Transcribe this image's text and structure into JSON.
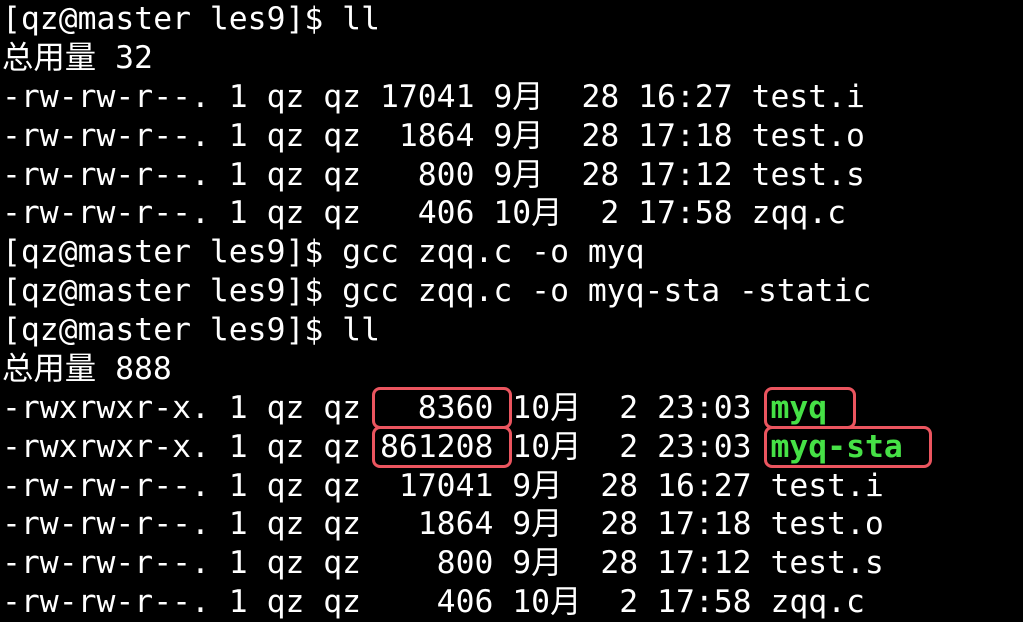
{
  "colors": {
    "background": "#000000",
    "foreground": "#ffffff",
    "executable_green": "#46e146",
    "annotation_red": "#eb555f"
  },
  "lines": [
    {
      "type": "command",
      "text": "[qz@master les9]$ ll"
    },
    {
      "type": "total",
      "text": "总用量 32"
    },
    {
      "type": "file",
      "text": "-rw-rw-r--. 1 qz qz 17041 9月  28 16:27 test.i"
    },
    {
      "type": "file",
      "text": "-rw-rw-r--. 1 qz qz  1864 9月  28 17:18 test.o"
    },
    {
      "type": "file",
      "text": "-rw-rw-r--. 1 qz qz   800 9月  28 17:12 test.s"
    },
    {
      "type": "file",
      "text": "-rw-rw-r--. 1 qz qz   406 10月  2 17:58 zqq.c"
    },
    {
      "type": "command",
      "text": "[qz@master les9]$ gcc zqq.c -o myq"
    },
    {
      "type": "command",
      "text": "[qz@master les9]$ gcc zqq.c -o myq-sta -static"
    },
    {
      "type": "command",
      "text": "[qz@master les9]$ ll"
    },
    {
      "type": "total",
      "text": "总用量 888"
    },
    {
      "type": "file-annotated",
      "prefix": "-rwxrwxr-x. 1 qz qz ",
      "size": "  8360",
      "middle": " 10月  2 23:03 ",
      "name": "myq"
    },
    {
      "type": "file-annotated",
      "prefix": "-rwxrwxr-x. 1 qz qz ",
      "size": "861208",
      "middle": " 10月  2 23:03 ",
      "name": "myq-sta"
    },
    {
      "type": "file",
      "text": "-rw-rw-r--. 1 qz qz  17041 9月  28 16:27 test.i"
    },
    {
      "type": "file",
      "text": "-rw-rw-r--. 1 qz qz   1864 9月  28 17:18 test.o"
    },
    {
      "type": "file",
      "text": "-rw-rw-r--. 1 qz qz    800 9月  28 17:12 test.s"
    },
    {
      "type": "file",
      "text": "-rw-rw-r--. 1 qz qz    406 10月  2 17:58 zqq.c"
    }
  ]
}
